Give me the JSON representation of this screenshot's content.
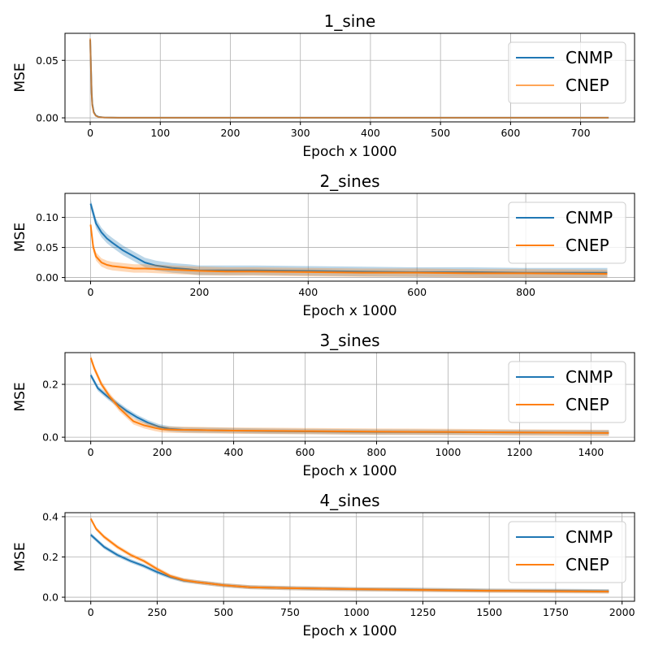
{
  "colors": {
    "cnmp": "#1f77b4",
    "cnep": "#ff7f0e",
    "grid": "#b0b0b0"
  },
  "chart_data": [
    {
      "type": "line",
      "title": "1_sine",
      "xlabel": "Epoch x 1000",
      "ylabel": "MSE",
      "xlim": [
        -36,
        777
      ],
      "ylim": [
        -0.0035,
        0.0735
      ],
      "xticks": [
        0,
        100,
        200,
        300,
        400,
        500,
        600,
        700
      ],
      "yticks": [
        0.0,
        0.05
      ],
      "ytick_labels": [
        "0.00",
        "0.05"
      ],
      "legend": "top-right",
      "legend_entries": [
        "CNMP",
        "CNEP"
      ],
      "cnep_alpha": 0.7,
      "series": [
        {
          "name": "CNMP",
          "key": "cnmp",
          "band": 0.0002,
          "x": [
            0,
            1,
            2,
            3,
            5,
            8,
            12,
            20,
            40,
            100,
            740
          ],
          "y": [
            0.068,
            0.045,
            0.022,
            0.012,
            0.005,
            0.002,
            0.0008,
            0.0003,
            0.0001,
            0.0001,
            0.0001
          ]
        },
        {
          "name": "CNEP",
          "key": "cnep",
          "band": 0.0002,
          "x": [
            0,
            1,
            2,
            3,
            5,
            8,
            12,
            20,
            40,
            100,
            740
          ],
          "y": [
            0.069,
            0.044,
            0.021,
            0.011,
            0.0045,
            0.0018,
            0.0007,
            0.0003,
            0.0001,
            0.0001,
            0.0001
          ]
        }
      ]
    },
    {
      "type": "line",
      "title": "2_sines",
      "xlabel": "Epoch x 1000",
      "ylabel": "MSE",
      "xlim": [
        -47,
        1000
      ],
      "ylim": [
        -0.006,
        0.14
      ],
      "xticks": [
        0,
        200,
        400,
        600,
        800
      ],
      "yticks": [
        0.0,
        0.05,
        0.1
      ],
      "ytick_labels": [
        "0.00",
        "0.05",
        "0.10"
      ],
      "legend": "top-right",
      "legend_entries": [
        "CNMP",
        "CNEP"
      ],
      "cnep_alpha": 1,
      "series": [
        {
          "name": "CNMP",
          "key": "cnmp",
          "band": 0.008,
          "x": [
            0,
            10,
            20,
            30,
            40,
            60,
            80,
            100,
            120,
            150,
            180,
            200,
            250,
            300,
            400,
            500,
            600,
            700,
            800,
            950
          ],
          "y": [
            0.123,
            0.09,
            0.075,
            0.065,
            0.058,
            0.045,
            0.035,
            0.025,
            0.02,
            0.016,
            0.014,
            0.012,
            0.012,
            0.012,
            0.011,
            0.01,
            0.009,
            0.009,
            0.008,
            0.008
          ]
        },
        {
          "name": "CNEP",
          "key": "cnep",
          "band": 0.007,
          "x": [
            0,
            5,
            10,
            20,
            30,
            40,
            60,
            80,
            100,
            150,
            200,
            250,
            300,
            400,
            500,
            600,
            700,
            800,
            950
          ],
          "y": [
            0.088,
            0.05,
            0.035,
            0.025,
            0.021,
            0.019,
            0.017,
            0.015,
            0.015,
            0.013,
            0.011,
            0.01,
            0.01,
            0.009,
            0.008,
            0.008,
            0.007,
            0.007,
            0.006
          ]
        }
      ]
    },
    {
      "type": "line",
      "title": "3_sines",
      "xlabel": "Epoch x 1000",
      "ylabel": "MSE",
      "xlim": [
        -72,
        1522
      ],
      "ylim": [
        -0.015,
        0.32
      ],
      "xticks": [
        0,
        200,
        400,
        600,
        800,
        1000,
        1200,
        1400
      ],
      "yticks": [
        0.0,
        0.2
      ],
      "ytick_labels": [
        "0.0",
        "0.2"
      ],
      "legend": "top-right",
      "legend_entries": [
        "CNMP",
        "CNEP"
      ],
      "cnep_alpha": 1,
      "series": [
        {
          "name": "CNMP",
          "key": "cnmp",
          "band": 0.01,
          "x": [
            0,
            20,
            50,
            80,
            100,
            130,
            160,
            190,
            220,
            260,
            300,
            400,
            500,
            600,
            800,
            1000,
            1200,
            1450
          ],
          "y": [
            0.235,
            0.185,
            0.15,
            0.12,
            0.1,
            0.075,
            0.055,
            0.04,
            0.032,
            0.028,
            0.027,
            0.025,
            0.023,
            0.022,
            0.02,
            0.019,
            0.018,
            0.017
          ]
        },
        {
          "name": "CNEP",
          "key": "cnep",
          "band": 0.012,
          "x": [
            0,
            10,
            30,
            50,
            80,
            100,
            120,
            150,
            180,
            200,
            240,
            300,
            400,
            500,
            600,
            800,
            1000,
            1200,
            1450
          ],
          "y": [
            0.3,
            0.26,
            0.2,
            0.16,
            0.11,
            0.085,
            0.06,
            0.045,
            0.035,
            0.03,
            0.028,
            0.027,
            0.025,
            0.024,
            0.023,
            0.021,
            0.02,
            0.018,
            0.016
          ]
        }
      ]
    },
    {
      "type": "line",
      "title": "4_sines",
      "xlabel": "Epoch x 1000",
      "ylabel": "MSE",
      "xlim": [
        -97,
        2047
      ],
      "ylim": [
        -0.02,
        0.42
      ],
      "xticks": [
        0,
        250,
        500,
        750,
        1000,
        1250,
        1500,
        1750,
        2000
      ],
      "yticks": [
        0.0,
        0.2,
        0.4
      ],
      "ytick_labels": [
        "0.0",
        "0.2",
        "0.4"
      ],
      "legend": "top-right",
      "legend_entries": [
        "CNMP",
        "CNEP"
      ],
      "cnep_alpha": 1,
      "series": [
        {
          "name": "CNMP",
          "key": "cnmp",
          "band": 0.01,
          "x": [
            0,
            50,
            100,
            150,
            200,
            250,
            300,
            350,
            400,
            500,
            600,
            750,
            1000,
            1250,
            1500,
            1750,
            1950
          ],
          "y": [
            0.31,
            0.25,
            0.21,
            0.18,
            0.155,
            0.125,
            0.1,
            0.083,
            0.075,
            0.06,
            0.05,
            0.045,
            0.04,
            0.037,
            0.033,
            0.032,
            0.03
          ]
        },
        {
          "name": "CNEP",
          "key": "cnep",
          "band": 0.01,
          "x": [
            0,
            20,
            50,
            100,
            150,
            200,
            250,
            300,
            350,
            400,
            500,
            600,
            750,
            1000,
            1250,
            1500,
            1750,
            1950
          ],
          "y": [
            0.39,
            0.34,
            0.3,
            0.25,
            0.21,
            0.18,
            0.14,
            0.105,
            0.085,
            0.075,
            0.06,
            0.05,
            0.045,
            0.04,
            0.036,
            0.032,
            0.03,
            0.028
          ]
        }
      ]
    }
  ]
}
